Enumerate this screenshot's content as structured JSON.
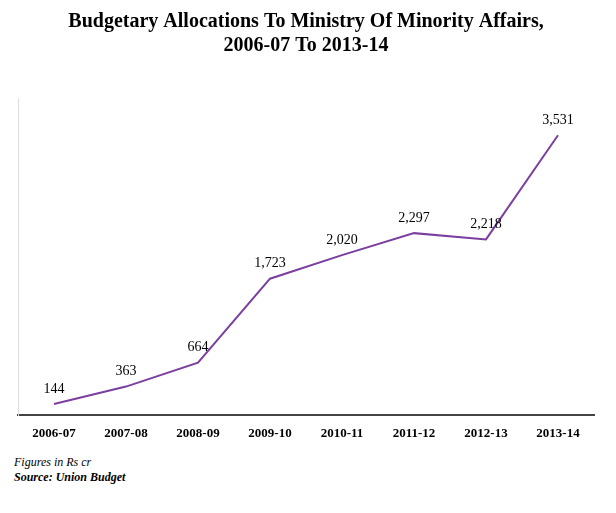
{
  "chart_data": {
    "type": "line",
    "title": [
      "Budgetary Allocations To Ministry Of Minority Affairs,",
      "2006-07 To 2013-14"
    ],
    "categories": [
      "2006-07",
      "2007-08",
      "2008-09",
      "2009-10",
      "2010-11",
      "2011-12",
      "2012-13",
      "2013-14"
    ],
    "values": [
      144,
      363,
      664,
      1723,
      2020,
      2297,
      2218,
      3531
    ],
    "value_labels": [
      "144",
      "363",
      "664",
      "1,723",
      "2,020",
      "2,297",
      "2,218",
      "3,531"
    ],
    "color": "#7b3fa0",
    "ylim": [
      0,
      4000
    ],
    "grid": false,
    "data_labels": true,
    "tick_labels": "x",
    "notes": [
      "Figures in Rs cr",
      "Source: Union Budget"
    ]
  }
}
